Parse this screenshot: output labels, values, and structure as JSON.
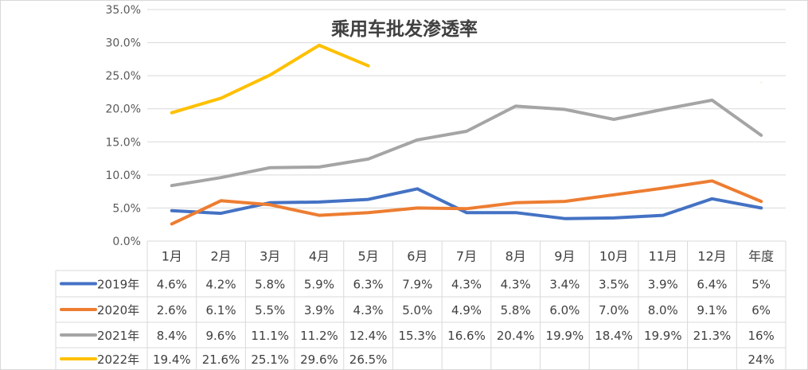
{
  "chart_data": {
    "type": "line",
    "title": "乘用车批发渗透率",
    "categories": [
      "1月",
      "2月",
      "3月",
      "4月",
      "5月",
      "6月",
      "7月",
      "8月",
      "9月",
      "10月",
      "11月",
      "12月",
      "年度"
    ],
    "ylim": [
      0,
      35
    ],
    "yticks": [
      0,
      5,
      10,
      15,
      20,
      25,
      30,
      35
    ],
    "ytick_labels": [
      "0.0%",
      "5.0%",
      "10.0%",
      "15.0%",
      "20.0%",
      "25.0%",
      "30.0%",
      "35.0%"
    ],
    "grid": true,
    "legend": "data-table",
    "series": [
      {
        "name": "2019年",
        "color": "#4472C4",
        "values": [
          4.6,
          4.2,
          5.8,
          5.9,
          6.3,
          7.9,
          4.3,
          4.3,
          3.4,
          3.5,
          3.9,
          6.4,
          5
        ],
        "labels": [
          "4.6%",
          "4.2%",
          "5.8%",
          "5.9%",
          "6.3%",
          "7.9%",
          "4.3%",
          "4.3%",
          "3.4%",
          "3.5%",
          "3.9%",
          "6.4%",
          "5%"
        ]
      },
      {
        "name": "2020年",
        "color": "#ED7D31",
        "values": [
          2.6,
          6.1,
          5.5,
          3.9,
          4.3,
          5.0,
          4.9,
          5.8,
          6.0,
          7.0,
          8.0,
          9.1,
          6
        ],
        "labels": [
          "2.6%",
          "6.1%",
          "5.5%",
          "3.9%",
          "4.3%",
          "5.0%",
          "4.9%",
          "5.8%",
          "6.0%",
          "7.0%",
          "8.0%",
          "9.1%",
          "6%"
        ]
      },
      {
        "name": "2021年",
        "color": "#A5A5A5",
        "values": [
          8.4,
          9.6,
          11.1,
          11.2,
          12.4,
          15.3,
          16.6,
          20.4,
          19.9,
          18.4,
          19.9,
          21.3,
          16
        ],
        "labels": [
          "8.4%",
          "9.6%",
          "11.1%",
          "11.2%",
          "12.4%",
          "15.3%",
          "16.6%",
          "20.4%",
          "19.9%",
          "18.4%",
          "19.9%",
          "21.3%",
          "16%"
        ]
      },
      {
        "name": "2022年",
        "color": "#FFC000",
        "values": [
          19.4,
          21.6,
          25.1,
          29.6,
          26.5,
          null,
          null,
          null,
          null,
          null,
          null,
          null,
          24
        ],
        "labels": [
          "19.4%",
          "21.6%",
          "25.1%",
          "29.6%",
          "26.5%",
          "",
          "",
          "",
          "",
          "",
          "",
          "",
          "24%"
        ]
      }
    ]
  }
}
